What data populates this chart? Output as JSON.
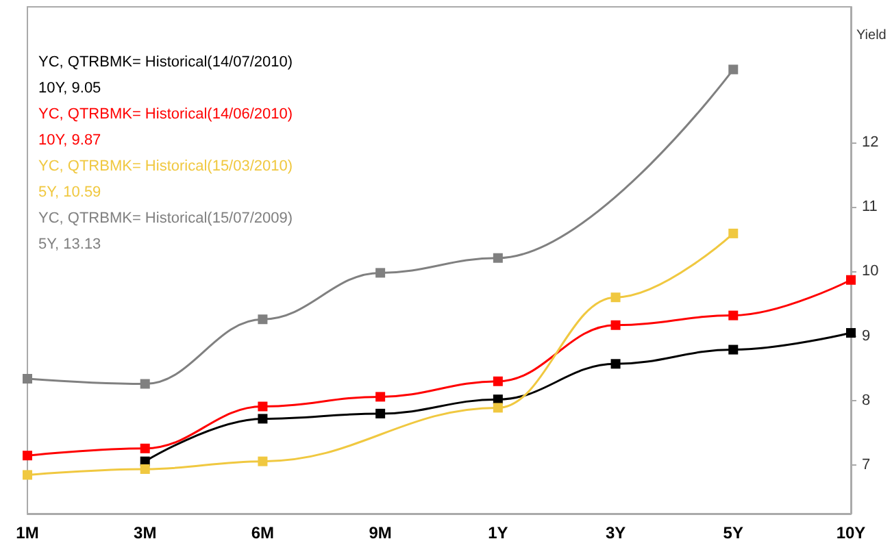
{
  "chart_data": {
    "type": "line",
    "ylabel": "Yield",
    "categories": [
      "1M",
      "3M",
      "6M",
      "9M",
      "1Y",
      "3Y",
      "5Y",
      "10Y"
    ],
    "series": [
      {
        "name": "YC, QTRBMK= Historical(14/07/2010)",
        "color": "#000000",
        "values": [
          null,
          7.06,
          7.72,
          7.8,
          8.02,
          8.57,
          8.79,
          9.05
        ]
      },
      {
        "name": "YC, QTRBMK= Historical(14/06/2010)",
        "color": "#ff0000",
        "values": [
          7.15,
          7.26,
          7.91,
          8.06,
          8.3,
          9.17,
          9.32,
          9.87
        ]
      },
      {
        "name": "YC, QTRBMK= Historical(15/03/2010)",
        "color": "#f0c840",
        "values": [
          6.85,
          6.94,
          7.06,
          null,
          7.89,
          9.6,
          10.59,
          null
        ]
      },
      {
        "name": "YC, QTRBMK= Historical(15/07/2009)",
        "color": "#808080",
        "values": [
          8.34,
          8.26,
          9.26,
          9.98,
          10.21,
          null,
          13.13,
          null
        ]
      }
    ],
    "annotations": [
      "10Y, 9.05",
      "10Y, 9.87",
      "5Y, 10.59",
      "5Y, 13.13"
    ],
    "ylim": [
      6.25,
      14.1
    ],
    "yticks": [
      7,
      8,
      9,
      10,
      11,
      12
    ],
    "grid": false,
    "legend": "top left",
    "marker": "square",
    "line_style": "solid"
  }
}
